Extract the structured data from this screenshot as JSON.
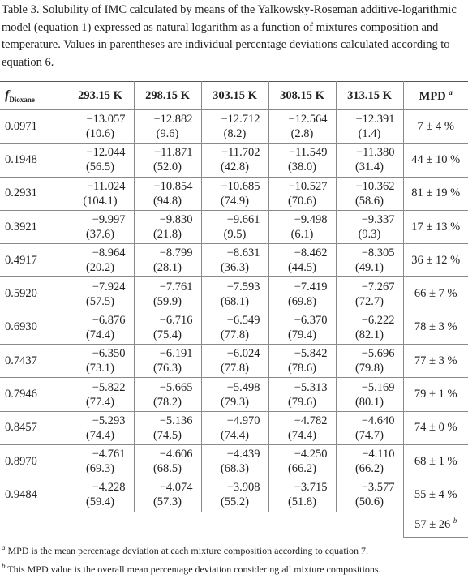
{
  "caption": "Table 3. Solubility of IMC calculated by means of the Yalkowsky-Roseman additive-logarithmic model (equation 1) expressed as natural logarithm as a function of mixtures composition and temperature. Values in parentheses are individual percentage deviations calculated according to equation 6.",
  "table": {
    "header": {
      "fraction_symbol": "f",
      "fraction_subscript": "Dioxane",
      "temperatures": [
        "293.15 K",
        "298.15 K",
        "303.15 K",
        "308.15 K",
        "313.15 K"
      ],
      "mpd": "MPD",
      "mpd_note": "a"
    },
    "rows": [
      {
        "fraction": "0.0971",
        "cells": [
          [
            "−13.057",
            "(10.6)"
          ],
          [
            "−12.882",
            "(9.6)"
          ],
          [
            "−12.712",
            "(8.2)"
          ],
          [
            "−12.564",
            "(2.8)"
          ],
          [
            "−12.391",
            "(1.4)"
          ]
        ],
        "mpd": "7 ± 4 %"
      },
      {
        "fraction": "0.1948",
        "cells": [
          [
            "−12.044",
            "(56.5)"
          ],
          [
            "−11.871",
            "(52.0)"
          ],
          [
            "−11.702",
            "(42.8)"
          ],
          [
            "−11.549",
            "(38.0)"
          ],
          [
            "−11.380",
            "(31.4)"
          ]
        ],
        "mpd": "44 ± 10 %"
      },
      {
        "fraction": "0.2931",
        "cells": [
          [
            "−11.024",
            "(104.1)"
          ],
          [
            "−10.854",
            "(94.8)"
          ],
          [
            "−10.685",
            "(74.9)"
          ],
          [
            "−10.527",
            "(70.6)"
          ],
          [
            "−10.362",
            "(58.6)"
          ]
        ],
        "mpd": "81 ± 19 %"
      },
      {
        "fraction": "0.3921",
        "cells": [
          [
            "−9.997",
            "(37.6)"
          ],
          [
            "−9.830",
            "(21.8)"
          ],
          [
            "−9.661",
            "(9.5)"
          ],
          [
            "−9.498",
            "(6.1)"
          ],
          [
            "−9.337",
            "(9.3)"
          ]
        ],
        "mpd": "17 ± 13 %"
      },
      {
        "fraction": "0.4917",
        "cells": [
          [
            "−8.964",
            "(20.2)"
          ],
          [
            "−8.799",
            "(28.1)"
          ],
          [
            "−8.631",
            "(36.3)"
          ],
          [
            "−8.462",
            "(44.5)"
          ],
          [
            "−8.305",
            "(49.1)"
          ]
        ],
        "mpd": "36 ± 12 %"
      },
      {
        "fraction": "0.5920",
        "cells": [
          [
            "−7.924",
            "(57.5)"
          ],
          [
            "−7.761",
            "(59.9)"
          ],
          [
            "−7.593",
            "(68.1)"
          ],
          [
            "−7.419",
            "(69.8)"
          ],
          [
            "−7.267",
            "(72.7)"
          ]
        ],
        "mpd": "66 ± 7 %"
      },
      {
        "fraction": "0.6930",
        "cells": [
          [
            "−6.876",
            "(74.4)"
          ],
          [
            "−6.716",
            "(75.4)"
          ],
          [
            "−6.549",
            "(77.8)"
          ],
          [
            "−6.370",
            "(79.4)"
          ],
          [
            "−6.222",
            "(82.1)"
          ]
        ],
        "mpd": "78 ± 3 %"
      },
      {
        "fraction": "0.7437",
        "cells": [
          [
            "−6.350",
            "(73.1)"
          ],
          [
            "−6.191",
            "(76.3)"
          ],
          [
            "−6.024",
            "(77.8)"
          ],
          [
            "−5.842",
            "(78.6)"
          ],
          [
            "−5.696",
            "(79.8)"
          ]
        ],
        "mpd": "77 ± 3 %"
      },
      {
        "fraction": "0.7946",
        "cells": [
          [
            "−5.822",
            "(77.4)"
          ],
          [
            "−5.665",
            "(78.2)"
          ],
          [
            "−5.498",
            "(79.3)"
          ],
          [
            "−5.313",
            "(79.6)"
          ],
          [
            "−5.169",
            "(80.1)"
          ]
        ],
        "mpd": "79 ± 1 %"
      },
      {
        "fraction": "0.8457",
        "cells": [
          [
            "−5.293",
            "(74.4)"
          ],
          [
            "−5.136",
            "(74.5)"
          ],
          [
            "−4.970",
            "(74.4)"
          ],
          [
            "−4.782",
            "(74.4)"
          ],
          [
            "−4.640",
            "(74.7)"
          ]
        ],
        "mpd": "74 ± 0 %"
      },
      {
        "fraction": "0.8970",
        "cells": [
          [
            "−4.761",
            "(69.3)"
          ],
          [
            "−4.606",
            "(68.5)"
          ],
          [
            "−4.439",
            "(68.3)"
          ],
          [
            "−4.250",
            "(66.2)"
          ],
          [
            "−4.110",
            "(66.2)"
          ]
        ],
        "mpd": "68 ± 1 %"
      },
      {
        "fraction": "0.9484",
        "cells": [
          [
            "−4.228",
            "(59.4)"
          ],
          [
            "−4.074",
            "(57.3)"
          ],
          [
            "−3.908",
            "(55.2)"
          ],
          [
            "−3.715",
            "(51.8)"
          ],
          [
            "−3.577",
            "(50.6)"
          ]
        ],
        "mpd": "55 ± 4 %"
      }
    ],
    "overall": {
      "mpd": "57 ± 26",
      "note": "b"
    }
  },
  "footnotes": [
    {
      "mark": "a",
      "text": "MPD is the mean percentage deviation at each mixture composition according to equation 7."
    },
    {
      "mark": "b",
      "text": "This MPD value is the overall mean percentage deviation considering all mixture compositions."
    }
  ]
}
